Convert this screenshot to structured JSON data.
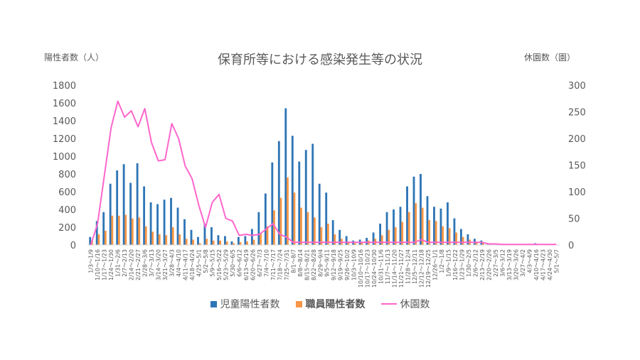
{
  "chart_data": {
    "type": "bar",
    "title": "保育所等における感染発生等の状況",
    "ylabel_left": "陽性者数（人）",
    "ylabel_right": "休園数（園）",
    "ylim_left": [
      0,
      1800
    ],
    "yticks_left": [
      "0",
      "200",
      "400",
      "600",
      "800",
      "1000",
      "1200",
      "1400",
      "1600",
      "1800"
    ],
    "ylim_right": [
      0,
      300
    ],
    "yticks_right": [
      "0",
      "50",
      "100",
      "150",
      "200",
      "250",
      "300"
    ],
    "legend_position": "bottom",
    "grid": false,
    "categories": [
      "1/3～1/9",
      "1/10～1/16",
      "1/17～1/23",
      "1/24～1/30",
      "1/31～2/6",
      "2/7～2/13",
      "2/14～2/20",
      "2/21～2/27",
      "2/28～3/6",
      "3/7～3/13",
      "3/14～3/20",
      "3/21～3/27",
      "3/28～4/3",
      "4/4～4/10",
      "4/11～4/17",
      "4/18～4/24",
      "4/25～5/1",
      "5/2～5/8",
      "5/9～5/15",
      "5/16～5/22",
      "5/23～5/29",
      "5/30～6/5",
      "6/6～6/12",
      "6/13～6/19",
      "6/20～6/26",
      "6/27～7/3",
      "7/4～7/10",
      "7/11～7/17",
      "7/18～7/24",
      "7/25～7/31",
      "8/1～8/7",
      "8/8～8/14",
      "8/15～8/21",
      "8/22～8/28",
      "8/29～9/4",
      "9/5～9/11",
      "9/12～9/18",
      "9/19～9/25",
      "9/26～10/2",
      "10/3～10/9",
      "10/10～10/16",
      "10/17～10/23",
      "10/24～10/30",
      "10/31～11/6",
      "11/7～11/13",
      "11/14～11/20",
      "11/21～11/27",
      "11/28～12/4",
      "12/5～12/11",
      "12/12～12/18",
      "12/19～12/25",
      "12/26～1/1",
      "1/2～1/8",
      "1/9～1/15",
      "1/16～1/22",
      "1/23～1/29",
      "1/30～2/5",
      "2/6～2/12",
      "2/13～2/19",
      "2/20～2/26",
      "2/27～3/5",
      "3/6～3/12",
      "3/13～3/19",
      "3/20～3/26",
      "3/27～4/2",
      "4/3～4/9",
      "4/10～4/16",
      "4/17～4/23",
      "4/24～4/30",
      "5/1～5/7"
    ],
    "visible_tick_labels": [
      "1/3～1/9",
      "1/10～1/16",
      "1/17～1/23",
      "1/24～1/30",
      "1/31～2/6",
      "2/7～2/13",
      "2/14～2/20",
      "2/21～2/27",
      "2/28～3/6",
      "3/7～3/13",
      "3/14～3/20",
      "3/21～3/27",
      "3/28～4/3",
      "4/4～4/10",
      "4/11～4/17",
      "4/18～4/24",
      "4/25～5/1",
      "5/2～5/8",
      "5/9～5/15",
      "5/16～5/22",
      "5/23～5/29",
      "5/30～6/5",
      "6/6～6/12",
      "6/13～6/19",
      "6/20～6/26",
      "6/27～7/3",
      "7/4～7/10",
      "7/11～7/17",
      "7/18～7/24",
      "7/25～7/31",
      "8/1～8/7",
      "8/8～8/14",
      "8/15～8/21",
      "8/22～8/28",
      "8/29～9/4",
      "9/5～9/11",
      "9/12～9/18",
      "9/19～9/25",
      "9/26～10/2",
      "10/3～10/9",
      "10/10～10/16",
      "10/17～10/23",
      "10/24～10/30",
      "10/31～11/6",
      "11/7～11/13",
      "11/14～11/20",
      "11/21～11/27",
      "11/28～12/4",
      "12/5～12/11",
      "12/12～12/18",
      "12/19～12/25",
      "12/26～1/1",
      "1/2～1/8",
      "1/9～1/15",
      "1/16～1/22",
      "1/23～1/29",
      "1/30～2/5",
      "2/6～2/12",
      "2/13～2/19",
      "2/20～2/26",
      "2/27～3/5",
      "3/6～3/12",
      "3/13～3/19",
      "3/20～3/26",
      "3/27～4/2",
      "4/3～4/9",
      "4/10～4/16",
      "4/17～4/23",
      "4/24～4/30",
      "5/1～5/7"
    ],
    "series": [
      {
        "name": "児童陽性者数",
        "type": "bar",
        "axis": "left",
        "color": "#2e75b6",
        "values": [
          90,
          270,
          370,
          690,
          840,
          910,
          700,
          920,
          660,
          480,
          460,
          510,
          530,
          420,
          290,
          170,
          90,
          240,
          200,
          110,
          100,
          40,
          90,
          100,
          180,
          370,
          580,
          930,
          1170,
          1540,
          1230,
          940,
          1070,
          1140,
          690,
          590,
          280,
          170,
          100,
          50,
          60,
          80,
          140,
          240,
          370,
          400,
          430,
          660,
          770,
          800,
          550,
          430,
          410,
          480,
          300,
          180,
          120,
          70,
          50,
          20,
          15,
          8,
          5,
          5,
          8,
          3,
          20,
          10,
          5,
          3
        ]
      },
      {
        "name": "職員陽性者数",
        "type": "bar",
        "axis": "left",
        "color": "#f79646",
        "values": [
          50,
          120,
          160,
          330,
          330,
          340,
          300,
          310,
          210,
          150,
          120,
          110,
          200,
          120,
          70,
          60,
          20,
          70,
          50,
          50,
          40,
          20,
          30,
          40,
          60,
          130,
          210,
          390,
          530,
          760,
          590,
          420,
          370,
          310,
          200,
          240,
          120,
          70,
          40,
          20,
          30,
          50,
          70,
          110,
          170,
          200,
          260,
          370,
          470,
          420,
          280,
          270,
          210,
          190,
          140,
          90,
          60,
          40,
          20,
          10,
          8,
          5,
          3,
          3,
          4,
          2,
          10,
          5,
          3,
          2
        ]
      },
      {
        "name": "休園数",
        "type": "line",
        "axis": "right",
        "color": "#ff66cc",
        "values": [
          0,
          40,
          130,
          220,
          270,
          240,
          252,
          222,
          256,
          192,
          158,
          160,
          228,
          200,
          148,
          125,
          75,
          33,
          80,
          95,
          50,
          45,
          18,
          20,
          18,
          20,
          30,
          40,
          20,
          15,
          5,
          5,
          5,
          5,
          5,
          5,
          5,
          5,
          5,
          5,
          5,
          5,
          5,
          5,
          5,
          5,
          5,
          5,
          5,
          10,
          5,
          5,
          5,
          5,
          5,
          5,
          5,
          5,
          5,
          2,
          2,
          1,
          1,
          1,
          1,
          1,
          1,
          1,
          1,
          1
        ]
      }
    ]
  }
}
